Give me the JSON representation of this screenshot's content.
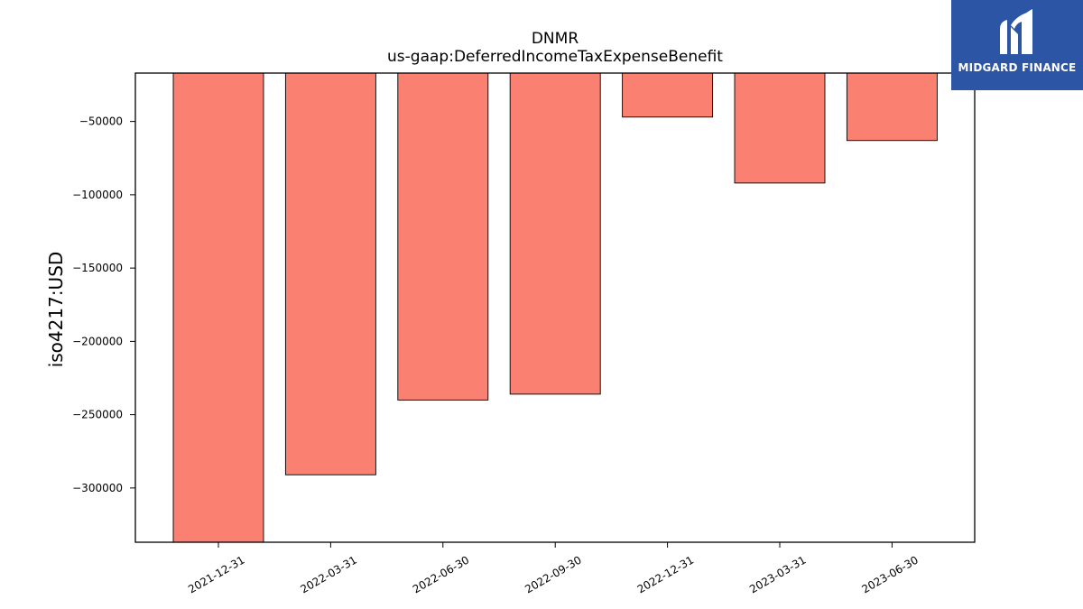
{
  "chart_data": {
    "type": "bar",
    "title": "DNMR",
    "subtitle": "us-gaap:DeferredIncomeTaxExpenseBenefit",
    "xlabel": "",
    "ylabel": "iso4217:USD",
    "categories": [
      "2021-12-31",
      "2022-03-31",
      "2022-06-30",
      "2022-09-30",
      "2022-12-31",
      "2023-03-31",
      "2023-06-30"
    ],
    "values": [
      -340000,
      -291000,
      -240000,
      -236000,
      -47000,
      -92000,
      -63000
    ],
    "ylim": [
      -337000,
      -17000
    ],
    "yticks": [
      -50000,
      -100000,
      -150000,
      -200000,
      -250000,
      -300000
    ],
    "ytick_labels": [
      "−50000",
      "−100000",
      "−150000",
      "−200000",
      "−250000",
      "−300000"
    ],
    "bar_color": "#fa8072",
    "grid": false,
    "legend": "none"
  },
  "logo": {
    "text": "MIDGARD FINANCE",
    "background": "#2d55a6"
  }
}
